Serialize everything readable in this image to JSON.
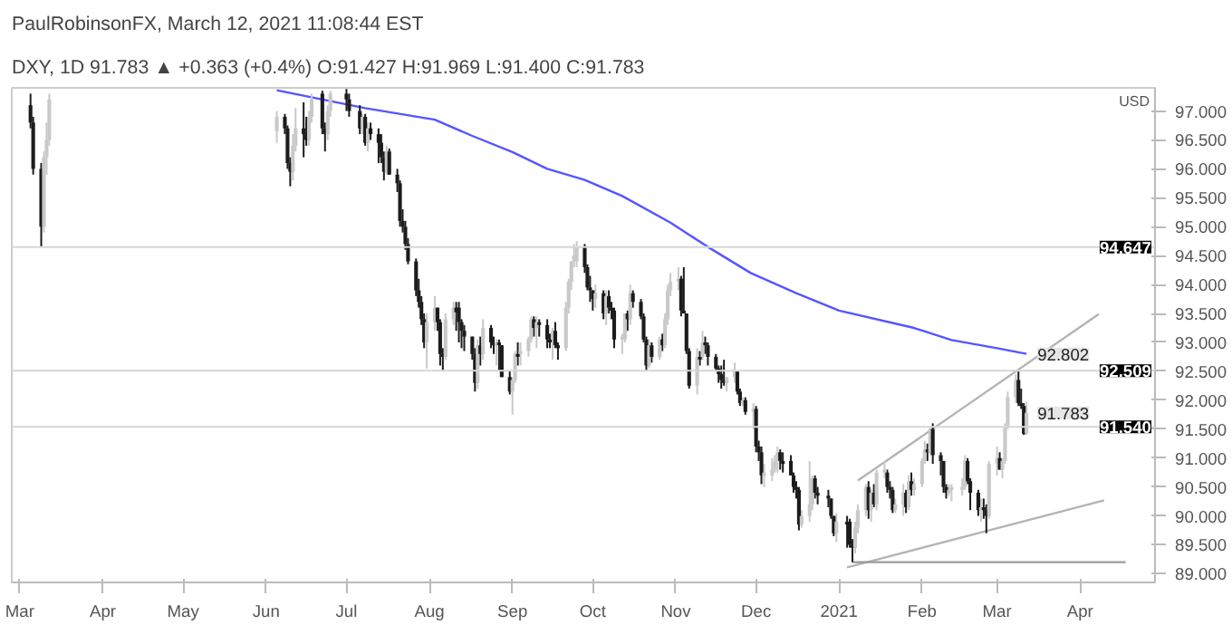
{
  "chart_data": {
    "type": "candlestick",
    "title": "PaulRobinsonFX, March 12, 2021 11:08:44 EST",
    "subtitle": "DXY, 1D 91.783 ▲ +0.363 (+0.4%) O:91.427 H:91.969 L:91.400 C:91.783",
    "x": [
      "2020-03-05",
      "2020-03-06",
      "2020-03-09",
      "2020-03-10",
      "2020-03-11",
      "2020-03-12",
      "2020-06-05",
      "2020-06-08",
      "2020-06-09",
      "2020-06-10",
      "2020-06-11",
      "2020-06-12",
      "2020-06-15",
      "2020-06-16",
      "2020-06-17",
      "2020-06-18",
      "2020-06-22",
      "2020-06-23",
      "2020-06-24",
      "2020-06-25",
      "2020-07-01",
      "2020-07-02",
      "2020-07-06",
      "2020-07-07",
      "2020-07-08",
      "2020-07-09",
      "2020-07-10",
      "2020-07-13",
      "2020-07-14",
      "2020-07-15",
      "2020-07-16",
      "2020-07-17",
      "2020-07-20",
      "2020-07-21",
      "2020-07-22",
      "2020-07-23",
      "2020-07-24",
      "2020-07-27",
      "2020-07-28",
      "2020-07-29",
      "2020-07-30",
      "2020-07-31",
      "2020-08-03",
      "2020-08-04",
      "2020-08-05",
      "2020-08-06",
      "2020-08-07",
      "2020-08-10",
      "2020-08-11",
      "2020-08-12",
      "2020-08-13",
      "2020-08-14",
      "2020-08-17",
      "2020-08-18",
      "2020-08-19",
      "2020-08-20",
      "2020-08-21",
      "2020-08-24",
      "2020-08-25",
      "2020-08-26",
      "2020-08-27",
      "2020-08-28",
      "2020-08-31",
      "2020-09-01",
      "2020-09-02",
      "2020-09-03",
      "2020-09-04",
      "2020-09-07",
      "2020-09-08",
      "2020-09-09",
      "2020-09-10",
      "2020-09-11",
      "2020-09-14",
      "2020-09-15",
      "2020-09-16",
      "2020-09-17",
      "2020-09-18",
      "2020-09-21",
      "2020-09-22",
      "2020-09-23",
      "2020-09-24",
      "2020-09-25",
      "2020-09-28",
      "2020-09-29",
      "2020-09-30",
      "2020-10-01",
      "2020-10-02",
      "2020-10-05",
      "2020-10-06",
      "2020-10-07",
      "2020-10-08",
      "2020-10-09",
      "2020-10-12",
      "2020-10-13",
      "2020-10-14",
      "2020-10-15",
      "2020-10-16",
      "2020-10-19",
      "2020-10-20",
      "2020-10-21",
      "2020-10-22",
      "2020-10-23",
      "2020-10-26",
      "2020-10-27",
      "2020-10-28",
      "2020-10-29",
      "2020-10-30",
      "2020-11-02",
      "2020-11-03",
      "2020-11-04",
      "2020-11-05",
      "2020-11-06",
      "2020-11-09",
      "2020-11-10",
      "2020-11-11",
      "2020-11-12",
      "2020-11-13",
      "2020-11-16",
      "2020-11-17",
      "2020-11-18",
      "2020-11-19",
      "2020-11-20",
      "2020-11-23",
      "2020-11-24",
      "2020-11-25",
      "2020-11-26",
      "2020-11-27",
      "2020-11-30",
      "2020-12-01",
      "2020-12-02",
      "2020-12-03",
      "2020-12-04",
      "2020-12-07",
      "2020-12-08",
      "2020-12-09",
      "2020-12-10",
      "2020-12-11",
      "2020-12-14",
      "2020-12-15",
      "2020-12-16",
      "2020-12-17",
      "2020-12-18",
      "2020-12-21",
      "2020-12-22",
      "2020-12-23",
      "2020-12-24",
      "2020-12-28",
      "2020-12-29",
      "2020-12-30",
      "2020-12-31",
      "2021-01-04",
      "2021-01-05",
      "2021-01-06",
      "2021-01-07",
      "2021-01-08",
      "2021-01-11",
      "2021-01-12",
      "2021-01-13",
      "2021-01-14",
      "2021-01-15",
      "2021-01-18",
      "2021-01-19",
      "2021-01-20",
      "2021-01-21",
      "2021-01-22",
      "2021-01-25",
      "2021-01-26",
      "2021-01-27",
      "2021-01-28",
      "2021-01-29",
      "2021-02-01",
      "2021-02-02",
      "2021-02-03",
      "2021-02-04",
      "2021-02-05",
      "2021-02-08",
      "2021-02-09",
      "2021-02-10",
      "2021-02-11",
      "2021-02-12",
      "2021-02-16",
      "2021-02-17",
      "2021-02-18",
      "2021-02-19",
      "2021-02-22",
      "2021-02-23",
      "2021-02-24",
      "2021-02-25",
      "2021-02-26",
      "2021-03-01",
      "2021-03-02",
      "2021-03-03",
      "2021-03-04",
      "2021-03-05",
      "2021-03-08",
      "2021-03-09",
      "2021-03-10",
      "2021-03-11",
      "2021-03-12"
    ],
    "ohlc": [
      [
        97.1,
        97.3,
        96.7,
        96.8
      ],
      [
        96.8,
        96.9,
        95.9,
        96.0
      ],
      [
        96.0,
        96.1,
        94.65,
        95.0
      ],
      [
        95.0,
        96.3,
        94.9,
        96.2
      ],
      [
        96.2,
        96.8,
        95.9,
        96.5
      ],
      [
        96.5,
        97.3,
        96.4,
        97.2
      ],
      [
        96.65,
        97.0,
        96.45,
        96.9
      ],
      [
        96.9,
        96.95,
        96.6,
        96.7
      ],
      [
        96.7,
        96.75,
        96.0,
        96.1
      ],
      [
        96.1,
        96.2,
        95.7,
        95.95
      ],
      [
        95.95,
        96.6,
        95.8,
        96.4
      ],
      [
        96.4,
        97.05,
        96.3,
        96.7
      ],
      [
        96.7,
        97.15,
        96.2,
        96.6
      ],
      [
        96.6,
        96.9,
        96.4,
        96.5
      ],
      [
        96.5,
        97.0,
        96.4,
        96.9
      ],
      [
        96.9,
        97.3,
        96.8,
        97.2
      ],
      [
        97.3,
        97.35,
        96.6,
        96.7
      ],
      [
        96.7,
        96.8,
        96.3,
        96.6
      ],
      [
        96.6,
        97.1,
        96.5,
        97.0
      ],
      [
        97.0,
        97.35,
        96.9,
        97.3
      ],
      [
        97.3,
        97.38,
        97.0,
        97.2
      ],
      [
        97.2,
        97.3,
        96.9,
        97.0
      ],
      [
        97.0,
        97.1,
        96.6,
        96.7
      ],
      [
        96.7,
        96.95,
        96.6,
        96.9
      ],
      [
        96.9,
        96.95,
        96.4,
        96.45
      ],
      [
        96.45,
        96.8,
        96.3,
        96.7
      ],
      [
        96.7,
        96.8,
        96.5,
        96.6
      ],
      [
        96.6,
        96.7,
        96.1,
        96.45
      ],
      [
        96.45,
        96.6,
        96.1,
        96.2
      ],
      [
        96.2,
        96.3,
        95.8,
        95.95
      ],
      [
        95.95,
        96.4,
        95.9,
        96.3
      ],
      [
        96.3,
        96.35,
        95.9,
        95.9
      ],
      [
        95.9,
        96.0,
        95.6,
        95.75
      ],
      [
        95.75,
        95.8,
        95.0,
        95.1
      ],
      [
        95.1,
        95.3,
        94.9,
        95.0
      ],
      [
        95.0,
        95.1,
        94.6,
        94.7
      ],
      [
        94.7,
        94.8,
        94.35,
        94.4
      ],
      [
        94.4,
        94.45,
        93.8,
        93.9
      ],
      [
        93.9,
        94.1,
        93.6,
        93.7
      ],
      [
        93.7,
        93.8,
        93.3,
        93.4
      ],
      [
        93.4,
        93.5,
        92.9,
        93.0
      ],
      [
        93.0,
        93.5,
        92.55,
        93.35
      ],
      [
        93.35,
        93.8,
        93.2,
        93.6
      ],
      [
        93.6,
        93.6,
        93.2,
        93.35
      ],
      [
        93.35,
        93.4,
        92.6,
        92.8
      ],
      [
        92.8,
        92.9,
        92.5,
        92.75
      ],
      [
        92.75,
        93.5,
        92.7,
        93.4
      ],
      [
        93.4,
        93.7,
        93.3,
        93.6
      ],
      [
        93.6,
        93.7,
        93.2,
        93.52
      ],
      [
        93.6,
        93.7,
        93.0,
        93.35
      ],
      [
        93.35,
        93.4,
        92.9,
        93.2
      ],
      [
        93.2,
        93.3,
        92.85,
        93.1
      ],
      [
        93.1,
        93.1,
        92.7,
        92.8
      ],
      [
        92.8,
        92.9,
        92.15,
        92.3
      ],
      [
        92.3,
        93.05,
        92.2,
        92.95
      ],
      [
        92.95,
        93.1,
        92.6,
        92.8
      ],
      [
        92.8,
        93.4,
        92.7,
        93.25
      ],
      [
        93.25,
        93.3,
        92.9,
        93.0
      ],
      [
        93.0,
        93.1,
        92.8,
        92.95
      ],
      [
        92.95,
        93.05,
        92.6,
        93.0
      ],
      [
        93.0,
        93.05,
        92.5,
        92.95
      ],
      [
        92.95,
        92.95,
        92.4,
        92.4
      ],
      [
        92.4,
        92.5,
        92.1,
        92.15
      ],
      [
        92.15,
        92.4,
        91.75,
        92.35
      ],
      [
        92.35,
        92.85,
        92.3,
        92.8
      ],
      [
        92.8,
        93.0,
        92.6,
        92.75
      ],
      [
        92.8,
        93.0,
        92.6,
        92.85
      ],
      [
        92.85,
        93.1,
        92.75,
        93.05
      ],
      [
        93.05,
        93.45,
        93.0,
        93.4
      ],
      [
        93.4,
        93.45,
        93.1,
        93.25
      ],
      [
        93.25,
        93.45,
        92.9,
        93.35
      ],
      [
        93.35,
        93.4,
        93.1,
        93.3
      ],
      [
        93.3,
        93.4,
        92.9,
        93.05
      ],
      [
        93.05,
        93.15,
        92.9,
        93.0
      ],
      [
        93.05,
        93.25,
        92.7,
        93.2
      ],
      [
        93.2,
        93.35,
        92.9,
        92.95
      ],
      [
        92.95,
        93.0,
        92.7,
        92.9
      ],
      [
        92.9,
        93.7,
        92.85,
        93.6
      ],
      [
        93.6,
        94.1,
        93.5,
        94.05
      ],
      [
        94.05,
        94.4,
        93.9,
        94.4
      ],
      [
        94.4,
        94.7,
        94.3,
        94.5
      ],
      [
        94.4,
        94.75,
        94.3,
        94.65
      ],
      [
        94.65,
        94.7,
        94.2,
        94.3
      ],
      [
        94.3,
        94.35,
        93.9,
        93.95
      ],
      [
        93.95,
        94.15,
        93.7,
        93.9
      ],
      [
        93.9,
        93.9,
        93.55,
        93.75
      ],
      [
        93.75,
        94.0,
        93.6,
        93.85
      ],
      [
        93.85,
        93.9,
        93.4,
        93.5
      ],
      [
        93.5,
        93.9,
        93.3,
        93.8
      ],
      [
        93.8,
        93.9,
        93.5,
        93.6
      ],
      [
        93.6,
        93.7,
        93.4,
        93.55
      ],
      [
        93.55,
        93.6,
        92.9,
        93.05
      ],
      [
        93.05,
        93.15,
        92.8,
        93.1
      ],
      [
        93.05,
        93.5,
        93.0,
        93.5
      ],
      [
        93.5,
        93.55,
        93.2,
        93.4
      ],
      [
        93.4,
        94.0,
        93.3,
        93.85
      ],
      [
        93.85,
        93.9,
        93.6,
        93.7
      ],
      [
        93.7,
        93.75,
        93.4,
        93.45
      ],
      [
        93.45,
        93.5,
        93.0,
        93.05
      ],
      [
        93.05,
        93.1,
        92.5,
        92.6
      ],
      [
        92.6,
        93.05,
        92.55,
        92.95
      ],
      [
        92.95,
        93.0,
        92.65,
        92.75
      ],
      [
        92.75,
        93.1,
        92.7,
        93.05
      ],
      [
        93.05,
        93.15,
        92.85,
        92.95
      ],
      [
        92.95,
        93.5,
        92.9,
        93.4
      ],
      [
        93.4,
        94.0,
        93.3,
        93.9
      ],
      [
        93.9,
        94.2,
        93.8,
        94.05
      ],
      [
        94.05,
        94.3,
        93.9,
        94.1
      ],
      [
        94.1,
        94.15,
        93.45,
        93.55
      ],
      [
        93.55,
        94.3,
        93.5,
        93.5
      ],
      [
        93.5,
        93.5,
        92.8,
        92.85
      ],
      [
        92.85,
        92.9,
        92.2,
        92.25
      ],
      [
        92.25,
        92.9,
        92.1,
        92.75
      ],
      [
        92.75,
        92.85,
        92.6,
        92.7
      ],
      [
        92.75,
        93.2,
        92.7,
        93.0
      ],
      [
        93.0,
        93.1,
        92.8,
        92.95
      ],
      [
        92.95,
        93.0,
        92.6,
        92.75
      ],
      [
        92.75,
        92.8,
        92.5,
        92.55
      ],
      [
        92.55,
        92.6,
        92.3,
        92.45
      ],
      [
        92.45,
        92.6,
        92.2,
        92.35
      ],
      [
        92.35,
        92.7,
        92.25,
        92.3
      ],
      [
        92.3,
        92.4,
        92.15,
        92.4
      ],
      [
        92.4,
        92.65,
        92.3,
        92.5
      ],
      [
        92.5,
        92.5,
        92.1,
        92.15
      ],
      [
        92.15,
        92.2,
        91.9,
        91.95
      ],
      [
        91.95,
        92.05,
        91.9,
        92.0
      ],
      [
        92.0,
        92.05,
        91.75,
        91.8
      ],
      [
        91.8,
        91.95,
        91.5,
        91.85
      ],
      [
        91.85,
        91.9,
        91.1,
        91.2
      ],
      [
        91.2,
        91.3,
        90.95,
        91.1
      ],
      [
        91.1,
        91.2,
        90.55,
        90.7
      ],
      [
        90.7,
        90.9,
        90.5,
        90.75
      ],
      [
        90.7,
        91.0,
        90.6,
        90.8
      ],
      [
        90.8,
        91.05,
        90.75,
        90.95
      ],
      [
        90.95,
        91.2,
        90.75,
        91.1
      ],
      [
        91.1,
        91.15,
        90.8,
        90.95
      ],
      [
        90.95,
        91.1,
        90.75,
        90.9
      ],
      [
        90.95,
        91.05,
        90.7,
        90.7
      ],
      [
        90.7,
        90.75,
        90.4,
        90.5
      ],
      [
        90.5,
        90.6,
        90.3,
        90.45
      ],
      [
        90.45,
        90.5,
        89.75,
        89.85
      ],
      [
        89.85,
        90.1,
        89.8,
        90.0
      ],
      [
        90.0,
        90.95,
        89.9,
        90.2
      ],
      [
        90.2,
        90.7,
        90.1,
        90.65
      ],
      [
        90.65,
        90.7,
        90.3,
        90.4
      ],
      [
        90.4,
        90.5,
        90.2,
        90.35
      ],
      [
        90.35,
        90.45,
        90.15,
        90.3
      ],
      [
        90.3,
        90.3,
        89.95,
        90.0
      ],
      [
        90.0,
        90.0,
        89.65,
        89.7
      ],
      [
        89.7,
        90.05,
        89.55,
        89.9
      ],
      [
        89.9,
        90.0,
        89.45,
        89.85
      ],
      [
        89.9,
        89.95,
        89.45,
        89.5
      ],
      [
        89.5,
        89.6,
        89.2,
        89.45
      ],
      [
        89.45,
        89.9,
        89.35,
        89.8
      ],
      [
        89.8,
        90.2,
        89.7,
        90.1
      ],
      [
        90.1,
        90.55,
        90.0,
        90.5
      ],
      [
        90.5,
        90.6,
        89.95,
        90.1
      ],
      [
        90.1,
        90.45,
        89.9,
        90.4
      ],
      [
        90.4,
        90.55,
        90.15,
        90.2
      ],
      [
        90.2,
        90.8,
        90.1,
        90.75
      ],
      [
        90.75,
        90.95,
        90.65,
        90.8
      ],
      [
        90.75,
        90.8,
        90.4,
        90.5
      ],
      [
        90.5,
        90.6,
        90.3,
        90.45
      ],
      [
        90.45,
        90.5,
        90.05,
        90.1
      ],
      [
        90.1,
        90.3,
        90.05,
        90.2
      ],
      [
        90.2,
        90.55,
        90.0,
        90.4
      ],
      [
        90.4,
        90.45,
        90.05,
        90.15
      ],
      [
        90.15,
        90.7,
        90.1,
        90.6
      ],
      [
        90.6,
        90.75,
        90.35,
        90.45
      ],
      [
        90.45,
        90.65,
        90.35,
        90.55
      ],
      [
        90.55,
        91.0,
        90.5,
        90.95
      ],
      [
        90.95,
        91.3,
        90.9,
        91.15
      ],
      [
        91.15,
        91.25,
        90.95,
        91.1
      ],
      [
        91.1,
        91.55,
        91.05,
        91.5
      ],
      [
        91.5,
        91.6,
        90.9,
        91.05
      ],
      [
        91.05,
        91.1,
        90.7,
        90.95
      ],
      [
        90.95,
        90.95,
        90.4,
        90.5
      ],
      [
        90.5,
        90.55,
        90.3,
        90.4
      ],
      [
        90.4,
        90.55,
        90.35,
        90.45
      ],
      [
        90.45,
        90.55,
        90.25,
        90.5
      ],
      [
        90.45,
        90.65,
        90.35,
        90.5
      ],
      [
        90.5,
        91.05,
        90.45,
        90.95
      ],
      [
        90.95,
        91.0,
        90.55,
        90.6
      ],
      [
        90.6,
        90.65,
        90.1,
        90.4
      ],
      [
        90.4,
        90.45,
        90.0,
        90.1
      ],
      [
        90.1,
        90.3,
        89.9,
        90.15
      ],
      [
        90.15,
        90.3,
        89.95,
        90.1
      ],
      [
        90.1,
        90.2,
        89.7,
        90.0
      ],
      [
        90.0,
        90.95,
        89.95,
        90.9
      ],
      [
        90.9,
        91.2,
        90.7,
        91.0
      ],
      [
        91.0,
        91.1,
        90.8,
        90.8
      ],
      [
        90.8,
        91.0,
        90.65,
        90.95
      ],
      [
        90.95,
        91.6,
        90.9,
        91.55
      ],
      [
        91.55,
        92.15,
        91.5,
        92.05
      ],
      [
        92.05,
        92.45,
        91.95,
        92.35
      ],
      [
        92.35,
        92.5,
        91.9,
        91.95
      ],
      [
        91.95,
        92.2,
        91.85,
        91.9
      ],
      [
        91.9,
        91.95,
        91.4,
        91.42
      ],
      [
        91.427,
        91.969,
        91.4,
        91.783
      ]
    ],
    "series": [
      {
        "type": "line",
        "color": "#5555ff",
        "x": [
          "2020-06-05",
          "2020-07-08",
          "2020-08-03",
          "2020-08-17",
          "2020-09-01",
          "2020-09-14",
          "2020-09-28",
          "2020-10-12",
          "2020-10-30",
          "2020-11-13",
          "2020-11-29",
          "2020-12-16",
          "2021-01-01",
          "2021-01-29",
          "2021-02-12",
          "2021-03-01",
          "2021-03-12"
        ],
        "values": [
          97.36,
          97.05,
          96.85,
          96.57,
          96.29,
          96.0,
          95.81,
          95.53,
          95.07,
          94.65,
          94.2,
          93.85,
          93.55,
          93.25,
          93.04,
          92.9,
          92.802
        ]
      },
      {
        "type": "line",
        "color": "#b4b4b4",
        "x": [
          "2021-01-08",
          "2021-04-08"
        ],
        "values": [
          90.61,
          93.49
        ]
      },
      {
        "type": "line",
        "color": "#b4b4b4",
        "x": [
          "2021-01-04",
          "2021-04-10"
        ],
        "values": [
          89.11,
          90.27
        ]
      },
      {
        "type": "line",
        "color": "#9a9a9a",
        "x": [
          "2021-01-06",
          "2021-04-18"
        ],
        "values": [
          89.2,
          89.2
        ]
      }
    ],
    "ref_lines": [
      {
        "axis": "y",
        "value": 94.647,
        "label": "94.647",
        "color": "#d6d6d6"
      },
      {
        "axis": "y",
        "value": 92.509,
        "label": "92.509",
        "color": "#d6d6d6"
      },
      {
        "axis": "y",
        "value": 91.54,
        "label": "91.540",
        "color": "#d6d6d6"
      }
    ],
    "annotations": [
      "USD",
      {
        "text": "92.802",
        "x": "2021-03-12",
        "y": 92.802
      },
      {
        "text": "91.783",
        "x": "2021-03-12",
        "y": 91.783
      }
    ],
    "xlim": [
      "2020-02-27",
      "2021-04-29"
    ],
    "xticks": [
      {
        "value": "2020-03-01",
        "label": "Mar"
      },
      {
        "value": "2020-04-01",
        "label": "Apr"
      },
      {
        "value": "2020-05-01",
        "label": "May"
      },
      {
        "value": "2020-06-01",
        "label": "Jun"
      },
      {
        "value": "2020-07-01",
        "label": "Jul"
      },
      {
        "value": "2020-08-01",
        "label": "Aug"
      },
      {
        "value": "2020-09-01",
        "label": "Sep"
      },
      {
        "value": "2020-10-01",
        "label": "Oct"
      },
      {
        "value": "2020-11-01",
        "label": "Nov"
      },
      {
        "value": "2020-12-01",
        "label": "Dec"
      },
      {
        "value": "2021-01-01",
        "label": "2021"
      },
      {
        "value": "2021-02-01",
        "label": "Feb"
      },
      {
        "value": "2021-03-01",
        "label": "Mar"
      },
      {
        "value": "2021-04-01",
        "label": "Apr"
      }
    ],
    "ylim": [
      88.85,
      97.4
    ],
    "yticks": [
      {
        "value": 89,
        "label": "89.000"
      },
      {
        "value": 89.5,
        "label": "89.500"
      },
      {
        "value": 90,
        "label": "90.000"
      },
      {
        "value": 90.5,
        "label": "90.500"
      },
      {
        "value": 91,
        "label": "91.000"
      },
      {
        "value": 91.5,
        "label": "91.500"
      },
      {
        "value": 92,
        "label": "92.000"
      },
      {
        "value": 92.5,
        "label": "92.500"
      },
      {
        "value": 93,
        "label": "93.000"
      },
      {
        "value": 93.5,
        "label": "93.500"
      },
      {
        "value": 94,
        "label": "94.000"
      },
      {
        "value": 94.5,
        "label": "94.500"
      },
      {
        "value": 95,
        "label": "95.000"
      },
      {
        "value": 95.5,
        "label": "95.500"
      },
      {
        "value": 96,
        "label": "96.000"
      },
      {
        "value": 96.5,
        "label": "96.500"
      },
      {
        "value": 97,
        "label": "97.000"
      }
    ],
    "grid": false
  }
}
